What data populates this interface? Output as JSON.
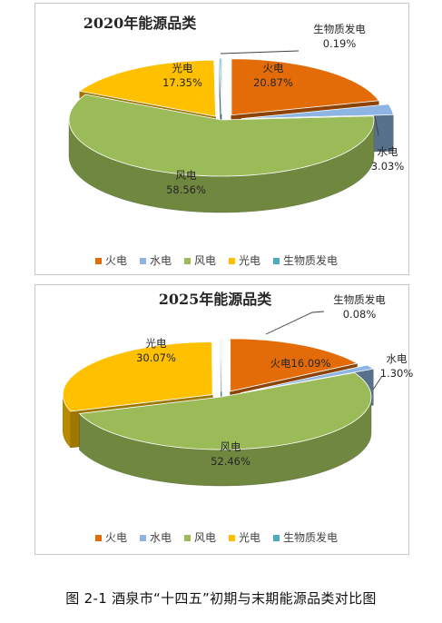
{
  "caption": "图 2-1 酒泉市“十四五”初期与末期能源品类对比图",
  "colors": {
    "火电": "#e36c09",
    "水电": "#8db4e2",
    "风电": "#9bbb59",
    "光电": "#ffc000",
    "生物质发电": "#4bacc6"
  },
  "chart_data": [
    {
      "type": "pie",
      "title": "2020年能源品类",
      "categories": [
        "火电",
        "水电",
        "风电",
        "光电",
        "生物质发电"
      ],
      "values": [
        20.87,
        3.03,
        58.56,
        17.35,
        0.19
      ],
      "labels": [
        "20.87%",
        "3.03%",
        "58.56%",
        "17.35%",
        "0.19%"
      ],
      "legend": [
        "火电",
        "水电",
        "风电",
        "光电",
        "生物质发电"
      ],
      "style": "3D exploded pie",
      "legend_position": "bottom"
    },
    {
      "type": "pie",
      "title": "2025年能源品类",
      "categories": [
        "火电",
        "水电",
        "风电",
        "光电",
        "生物质发电"
      ],
      "values": [
        16.09,
        1.3,
        52.46,
        30.07,
        0.08
      ],
      "labels": [
        "16.09%",
        "1.30%",
        "52.46%",
        "30.07%",
        "0.08%"
      ],
      "legend": [
        "火电",
        "水电",
        "风电",
        "光电",
        "生物质发电"
      ],
      "style": "3D exploded pie",
      "legend_position": "bottom"
    }
  ]
}
